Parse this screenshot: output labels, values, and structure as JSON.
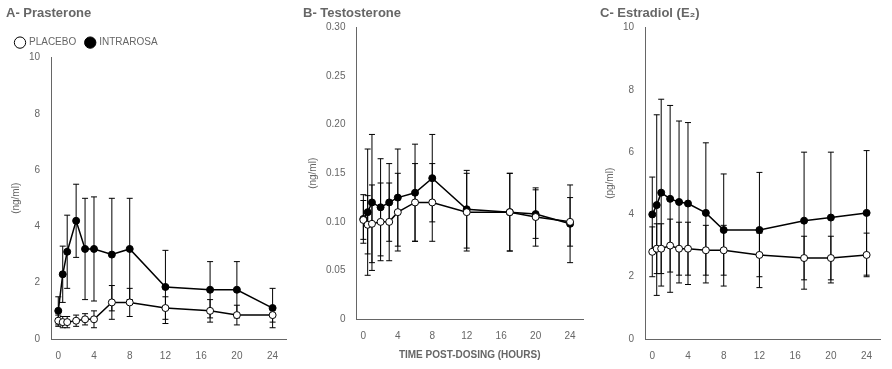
{
  "chart_data": [
    {
      "type": "line",
      "title": "A- Prasterone",
      "ylabel": "(ng/ml)",
      "x": [
        0,
        0.5,
        1,
        2,
        3,
        4,
        6,
        8,
        12,
        17,
        20,
        24
      ],
      "xlim": [
        -0.8,
        25.5
      ],
      "xticks": [
        0,
        4,
        8,
        12,
        16,
        20,
        24
      ],
      "ylim": [
        0,
        10
      ],
      "yticks": [
        0,
        2,
        4,
        6,
        8,
        10
      ],
      "grid": false,
      "legend": "upper left",
      "series": [
        {
          "name": "PLACEBO",
          "color": "#000000",
          "marker": "circle_open",
          "line_style": "solid",
          "values": [
            0.65,
            0.6,
            0.6,
            0.65,
            0.7,
            0.7,
            1.3,
            1.3,
            1.1,
            1.0,
            0.85,
            0.85
          ],
          "errors": [
            0.2,
            0.2,
            0.2,
            0.2,
            0.2,
            0.3,
            0.6,
            0.5,
            0.4,
            0.4,
            0.35,
            0.25
          ]
        },
        {
          "name": "INTRAROSA",
          "color": "#000000",
          "marker": "circle",
          "line_style": "solid",
          "values": [
            1.0,
            2.3,
            3.1,
            4.2,
            3.2,
            3.2,
            3.0,
            3.2,
            1.85,
            1.75,
            1.75,
            1.1
          ],
          "errors": [
            0.5,
            1.0,
            1.3,
            1.3,
            1.8,
            1.85,
            2.0,
            1.8,
            1.3,
            1.0,
            1.0,
            0.7
          ]
        }
      ]
    },
    {
      "type": "line",
      "title": "B- Testosterone",
      "ylabel": "(ng/ml)",
      "xlabel": "TIME POST-DOSING (HOURS)",
      "x": [
        0,
        0.5,
        1,
        2,
        3,
        4,
        6,
        8,
        12,
        17,
        20,
        24
      ],
      "xlim": [
        -0.8,
        25.5
      ],
      "xticks": [
        0,
        4,
        8,
        12,
        16,
        20,
        24
      ],
      "ylim": [
        0.0,
        0.3
      ],
      "yticks": [
        0,
        0.05,
        {
          "value": 0.1,
          "label": "0.10"
        },
        0.15,
        {
          "value": 0.2,
          "label": "0.20"
        },
        0.25,
        {
          "value": 0.3,
          "label": "0.30"
        }
      ],
      "grid": false,
      "legend": false,
      "series": [
        {
          "name": "PLACEBO",
          "color": "#000000",
          "marker": "circle_open",
          "line_style": "solid",
          "values": [
            0.102,
            0.097,
            0.098,
            0.1,
            0.1,
            0.11,
            0.12,
            0.12,
            0.11,
            0.11,
            0.105,
            0.1
          ],
          "errors": [
            0.02,
            0.03,
            0.04,
            0.04,
            0.04,
            0.04,
            0.04,
            0.04,
            0.04,
            0.04,
            0.03,
            0.025
          ]
        },
        {
          "name": "INTRAROSA",
          "color": "#000000",
          "marker": "circle",
          "line_style": "solid",
          "values": [
            0.103,
            0.11,
            0.12,
            0.115,
            0.12,
            0.125,
            0.13,
            0.145,
            0.113,
            0.11,
            0.108,
            0.098
          ],
          "errors": [
            0.025,
            0.065,
            0.07,
            0.05,
            0.04,
            0.05,
            0.05,
            0.045,
            0.04,
            0.04,
            0.025,
            0.04
          ]
        }
      ]
    },
    {
      "type": "line",
      "title": "C- Estradiol (E₂)",
      "ylabel": "(pg/ml)",
      "x": [
        0,
        0.5,
        1,
        2,
        3,
        4,
        6,
        8,
        12,
        17,
        20,
        24
      ],
      "xlim": [
        -0.8,
        25.5
      ],
      "xticks": [
        0,
        4,
        8,
        12,
        16,
        20,
        24
      ],
      "ylim": [
        0,
        10
      ],
      "yticks": [
        0,
        2,
        4,
        6,
        8,
        10
      ],
      "grid": false,
      "legend": false,
      "series": [
        {
          "name": "PLACEBO",
          "color": "#000000",
          "marker": "circle_open",
          "line_style": "solid",
          "values": [
            2.8,
            2.9,
            2.9,
            3.0,
            2.9,
            2.9,
            2.85,
            2.85,
            2.7,
            2.6,
            2.6,
            2.7
          ],
          "errors": [
            0.8,
            0.8,
            0.8,
            0.85,
            0.85,
            0.85,
            0.8,
            0.8,
            0.7,
            0.7,
            0.7,
            0.7
          ]
        },
        {
          "name": "INTRAROSA",
          "color": "#000000",
          "marker": "circle",
          "line_style": "solid",
          "values": [
            4.0,
            4.3,
            4.7,
            4.5,
            4.4,
            4.35,
            4.05,
            3.5,
            3.5,
            3.8,
            3.9,
            4.05
          ],
          "errors": [
            1.2,
            2.9,
            3.0,
            3.0,
            2.6,
            2.6,
            2.25,
            1.8,
            1.85,
            2.2,
            2.1,
            2.0
          ]
        }
      ]
    }
  ]
}
